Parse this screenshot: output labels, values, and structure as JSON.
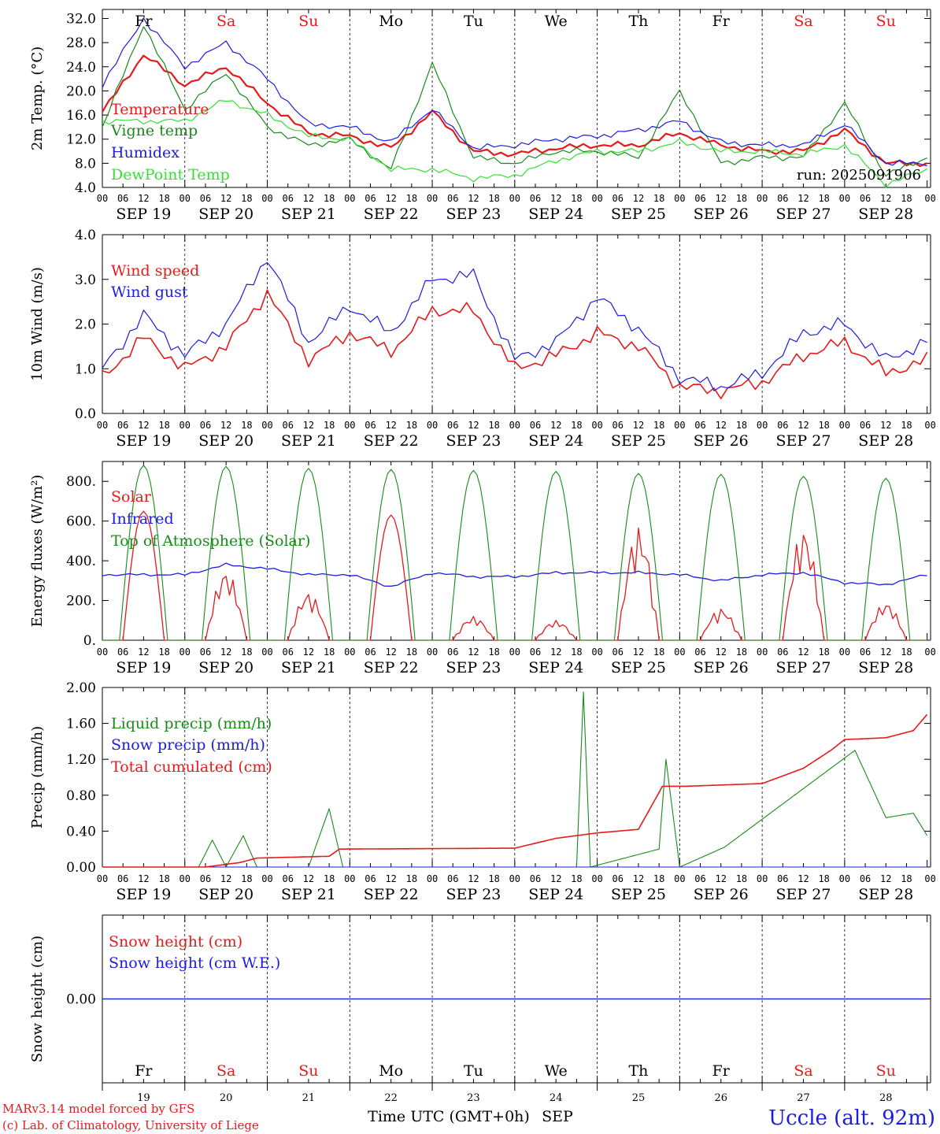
{
  "colors": {
    "red": "#e41a1c",
    "green": "#1a8a1a",
    "blue": "#1c1ce0",
    "lightgreen": "#33e033",
    "black": "#000000"
  },
  "days": {
    "labels": [
      "Fr",
      "Sa",
      "Su",
      "Mo",
      "Tu",
      "We",
      "Th",
      "Fr",
      "Sa",
      "Su"
    ],
    "weekend": [
      false,
      true,
      true,
      false,
      false,
      false,
      false,
      false,
      true,
      true
    ],
    "dates": [
      "SEP 19",
      "SEP 20",
      "SEP 21",
      "SEP 22",
      "SEP 23",
      "SEP 24",
      "SEP 25",
      "SEP 26",
      "SEP 27",
      "SEP 28"
    ],
    "day_numbers": [
      "19",
      "20",
      "21",
      "22",
      "23",
      "24",
      "25",
      "26",
      "27",
      "28"
    ],
    "hour_ticks": [
      "00",
      "06",
      "12",
      "18"
    ],
    "final_tick": "00"
  },
  "chart_data": [
    {
      "id": "temperature",
      "type": "line",
      "ylabel": "2m Temp. (°C)",
      "ylim": [
        4.0,
        33.5
      ],
      "yticks": [
        4.0,
        8.0,
        12.0,
        16.0,
        20.0,
        24.0,
        28.0,
        32.0
      ],
      "ytick_labels": [
        "4.0",
        "8.0",
        "12.0",
        "16.0",
        "20.0",
        "24.0",
        "28.0",
        "32.0"
      ],
      "annotation": "run: 2025091906",
      "x_unit": "hours since SEP 19 00 UTC (values every 12 h, 121 = final)",
      "series": [
        {
          "name": "Temperature",
          "color": "red",
          "stroke": 2.2,
          "x": [
            0,
            12,
            24,
            36,
            48,
            60,
            72,
            84,
            96,
            108,
            120,
            132,
            144,
            156,
            168,
            180,
            192,
            204,
            216,
            228,
            240
          ],
          "values": [
            16.5,
            26.0,
            21.0,
            24.0,
            18.0,
            13.0,
            12.5,
            10.5,
            16.5,
            10.0,
            9.5,
            10.5,
            11.0,
            11.0,
            13.0,
            11.0,
            10.0,
            10.0,
            13.5,
            8.0,
            8.0
          ]
        },
        {
          "name": "Vigne temp",
          "color": "green",
          "stroke": 1.2,
          "x": [
            0,
            12,
            24,
            36,
            48,
            60,
            72,
            84,
            96,
            108,
            120,
            132,
            144,
            156,
            168,
            180,
            192,
            204,
            216,
            228,
            240
          ],
          "values": [
            14.0,
            31.0,
            17.0,
            23.0,
            14.0,
            11.0,
            12.0,
            7.0,
            24.5,
            9.0,
            8.0,
            10.0,
            10.0,
            9.0,
            20.0,
            8.0,
            9.0,
            9.0,
            18.0,
            6.0,
            9.0
          ]
        },
        {
          "name": "Humidex",
          "color": "blue",
          "stroke": 1.2,
          "x": [
            0,
            12,
            24,
            36,
            48,
            60,
            72,
            84,
            96,
            108,
            120,
            132,
            144,
            156,
            168,
            180,
            192,
            204,
            216,
            228,
            240
          ],
          "values": [
            21.0,
            32.0,
            24.0,
            28.0,
            22.0,
            14.5,
            14.0,
            11.5,
            17.0,
            10.5,
            11.0,
            12.0,
            12.5,
            13.5,
            15.0,
            11.5,
            11.0,
            11.0,
            14.5,
            8.0,
            8.0
          ]
        },
        {
          "name": "DewPoint Temp",
          "color": "lightgreen",
          "stroke": 1.2,
          "x": [
            0,
            12,
            24,
            36,
            48,
            60,
            72,
            84,
            96,
            108,
            120,
            132,
            144,
            156,
            168,
            180,
            192,
            204,
            216,
            228,
            240
          ],
          "values": [
            15.0,
            15.0,
            15.0,
            18.5,
            16.0,
            12.5,
            12.0,
            7.0,
            7.0,
            5.5,
            6.0,
            8.5,
            10.0,
            10.0,
            11.5,
            10.0,
            10.0,
            9.5,
            11.0,
            4.5,
            7.0
          ]
        }
      ]
    },
    {
      "id": "wind",
      "type": "line",
      "ylabel": "10m Wind (m/s)",
      "ylim": [
        0,
        4.0
      ],
      "yticks": [
        0,
        1,
        2,
        3,
        4
      ],
      "ytick_labels": [
        "0.0",
        "1.0",
        "2.0",
        "3.0",
        "4.0"
      ],
      "series": [
        {
          "name": "Wind speed",
          "color": "red",
          "stroke": 1.6,
          "x": [
            0,
            12,
            24,
            36,
            48,
            60,
            72,
            84,
            96,
            108,
            120,
            132,
            144,
            156,
            168,
            180,
            192,
            204,
            216,
            228,
            240
          ],
          "values": [
            0.8,
            1.7,
            1.0,
            1.5,
            2.7,
            1.2,
            1.8,
            1.4,
            2.3,
            2.3,
            1.0,
            1.3,
            1.8,
            1.5,
            0.6,
            0.5,
            0.7,
            1.3,
            1.6,
            0.9,
            1.2
          ]
        },
        {
          "name": "Wind gust",
          "color": "blue",
          "stroke": 1.2,
          "x": [
            0,
            12,
            24,
            36,
            48,
            60,
            72,
            84,
            96,
            108,
            120,
            132,
            144,
            156,
            168,
            180,
            192,
            204,
            216,
            228,
            240
          ],
          "values": [
            1.0,
            2.2,
            1.3,
            2.0,
            3.5,
            1.6,
            2.4,
            1.8,
            3.0,
            3.1,
            1.2,
            1.6,
            2.6,
            1.9,
            0.8,
            0.6,
            0.9,
            1.8,
            2.0,
            1.2,
            1.6
          ]
        }
      ]
    },
    {
      "id": "energy",
      "type": "line",
      "ylabel": "Energy fluxes (W/m²)",
      "ylim": [
        0,
        900
      ],
      "yticks": [
        0,
        200,
        400,
        600,
        800
      ],
      "ytick_labels": [
        "0.",
        "200.",
        "400.",
        "600.",
        "800."
      ],
      "series": [
        {
          "name": "Solar",
          "color": "red",
          "stroke": 1.3,
          "daily_peak": [
            650,
            350,
            240,
            630,
            120,
            100,
            570,
            160,
            560,
            190
          ]
        },
        {
          "name": "Infrared",
          "color": "blue",
          "stroke": 1.3,
          "x": [
            0,
            12,
            24,
            36,
            48,
            60,
            72,
            84,
            96,
            108,
            120,
            132,
            144,
            156,
            168,
            180,
            192,
            204,
            216,
            228,
            240
          ],
          "values": [
            330,
            330,
            330,
            380,
            360,
            330,
            330,
            270,
            340,
            320,
            320,
            340,
            340,
            340,
            330,
            300,
            330,
            340,
            290,
            280,
            330
          ]
        },
        {
          "name": "Top of Atmosphere (Solar)",
          "color": "green",
          "stroke": 1.1,
          "daily_peak": [
            880,
            875,
            865,
            860,
            855,
            850,
            840,
            835,
            825,
            815
          ]
        }
      ]
    },
    {
      "id": "precip",
      "type": "line",
      "ylabel": "Precip (mm/h)",
      "ylim": [
        0,
        2.0
      ],
      "yticks": [
        0,
        0.4,
        0.8,
        1.2,
        1.6,
        2.0
      ],
      "ytick_labels": [
        "0.00",
        "0.40",
        "0.80",
        "1.20",
        "1.60",
        "2.00"
      ],
      "series": [
        {
          "name": "Liquid precip (mm/h)",
          "color": "green",
          "stroke": 1.1,
          "x": [
            0,
            28,
            32,
            36,
            41,
            45,
            60,
            66,
            70,
            138,
            140,
            142,
            162,
            164,
            168,
            181,
            219,
            228,
            236,
            240
          ],
          "values": [
            0,
            0,
            0.3,
            0,
            0.35,
            0,
            0,
            0.65,
            0,
            0,
            1.95,
            0,
            0.2,
            1.2,
            0,
            0.22,
            1.3,
            0.55,
            0.6,
            0.35
          ]
        },
        {
          "name": "Snow precip (mm/h)",
          "color": "blue",
          "stroke": 1.0,
          "x": [
            0,
            240
          ],
          "values": [
            0,
            0
          ]
        },
        {
          "name": "Total cumulated (cm)",
          "color": "red",
          "stroke": 1.6,
          "x": [
            0,
            30,
            40,
            45,
            66,
            69,
            120,
            132,
            144,
            156,
            163,
            170,
            192,
            204,
            212,
            216,
            228,
            236,
            240
          ],
          "values": [
            0,
            0,
            0.05,
            0.1,
            0.12,
            0.2,
            0.21,
            0.32,
            0.38,
            0.42,
            0.9,
            0.9,
            0.93,
            1.1,
            1.3,
            1.42,
            1.44,
            1.52,
            1.7
          ]
        }
      ]
    },
    {
      "id": "snow",
      "type": "line",
      "ylabel": "Snow height (cm)",
      "ylim": [
        -1,
        1
      ],
      "yticks": [
        0
      ],
      "ytick_labels": [
        "0.00"
      ],
      "series": [
        {
          "name": "Snow height (cm)",
          "color": "red",
          "stroke": 1.4,
          "x": [
            0,
            240
          ],
          "values": [
            0,
            0
          ]
        },
        {
          "name": "Snow height (cm W.E.)",
          "color": "blue",
          "stroke": 1.0,
          "x": [
            0,
            240
          ],
          "values": [
            0,
            0
          ]
        }
      ]
    }
  ],
  "footer": {
    "model_line": "MARv3.14 model forced by GFS",
    "credit_line": "(c) Lab. of Climatology, University of Liege",
    "xlabel": "Time UTC (GMT+0h)",
    "month": "SEP",
    "station": "Uccle (alt. 92m)"
  }
}
